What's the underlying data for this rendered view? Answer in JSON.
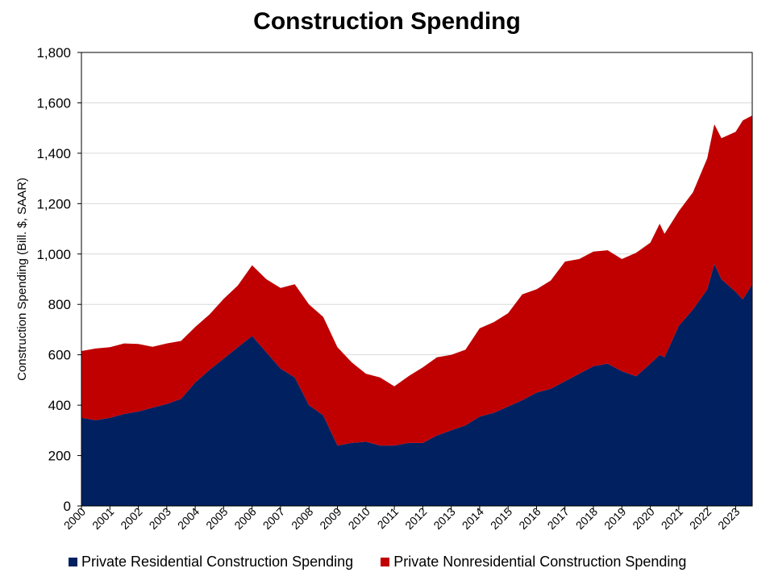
{
  "chart_data": {
    "type": "area",
    "stacked": true,
    "title": "Construction Spending",
    "ylabel": "Construction Spending (Bill. $, SAAR)",
    "xlabel": "",
    "ylim": [
      0,
      1800
    ],
    "yticks": [
      0,
      200,
      400,
      600,
      800,
      "1,000",
      "1,200",
      "1,400",
      "1,600",
      "1,800"
    ],
    "ytick_values": [
      0,
      200,
      400,
      600,
      800,
      1000,
      1200,
      1400,
      1600,
      1800
    ],
    "xlim": [
      2000.0,
      2023.583
    ],
    "xticks": [
      "2000",
      "2001",
      "2002",
      "2003",
      "2004",
      "2005",
      "2006",
      "2007",
      "2008",
      "2009",
      "2010",
      "2011",
      "2012",
      "2013",
      "2014",
      "2015",
      "2016",
      "2017",
      "2018",
      "2019",
      "2020",
      "2021",
      "2022",
      "2023"
    ],
    "grid": "horizontal",
    "legend_position": "bottom",
    "x": [
      2000.0,
      2000.5,
      2001.0,
      2001.5,
      2002.0,
      2002.5,
      2003.0,
      2003.5,
      2004.0,
      2004.5,
      2005.0,
      2005.5,
      2006.0,
      2006.5,
      2007.0,
      2007.5,
      2008.0,
      2008.5,
      2009.0,
      2009.5,
      2010.0,
      2010.5,
      2011.0,
      2011.5,
      2012.0,
      2012.5,
      2013.0,
      2013.5,
      2014.0,
      2014.5,
      2015.0,
      2015.5,
      2016.0,
      2016.5,
      2017.0,
      2017.5,
      2018.0,
      2018.5,
      2019.0,
      2019.5,
      2020.0,
      2020.33,
      2020.5,
      2021.0,
      2021.5,
      2022.0,
      2022.25,
      2022.5,
      2023.0,
      2023.25,
      2023.583
    ],
    "series": [
      {
        "name": "Private Residential Construction Spending",
        "color": "#002060",
        "values": [
          350,
          340,
          350,
          365,
          375,
          390,
          405,
          425,
          490,
          540,
          585,
          630,
          675,
          610,
          545,
          510,
          400,
          360,
          240,
          250,
          255,
          240,
          240,
          250,
          250,
          280,
          300,
          320,
          355,
          370,
          395,
          420,
          450,
          465,
          495,
          525,
          555,
          565,
          535,
          515,
          565,
          600,
          590,
          715,
          780,
          860,
          960,
          900,
          850,
          820,
          880
        ]
      },
      {
        "name": "Private Nonresidential Construction Spending",
        "color": "#C00000",
        "values": [
          265,
          285,
          280,
          280,
          268,
          242,
          240,
          230,
          220,
          220,
          237,
          245,
          280,
          290,
          320,
          370,
          400,
          390,
          390,
          320,
          270,
          270,
          235,
          265,
          300,
          310,
          300,
          300,
          350,
          360,
          370,
          420,
          410,
          430,
          475,
          455,
          455,
          450,
          445,
          490,
          480,
          520,
          490,
          455,
          465,
          520,
          555,
          560,
          635,
          710,
          670
        ]
      }
    ]
  },
  "legend": {
    "items": [
      {
        "label": "Private Residential Construction Spending",
        "color": "#002060"
      },
      {
        "label": "Private Nonresidential Construction Spending",
        "color": "#C00000"
      }
    ]
  }
}
